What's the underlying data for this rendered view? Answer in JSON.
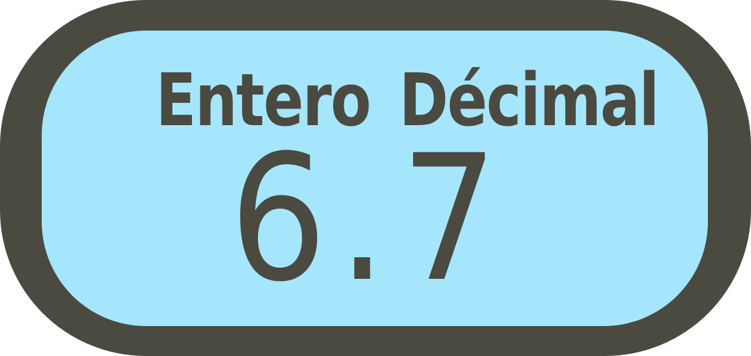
{
  "labels": {
    "integer": "Entero",
    "decimal": "Décimal"
  },
  "number": {
    "integer": "6",
    "point": ".",
    "decimal": "7"
  },
  "colors": {
    "frame": "#4a4a40",
    "panel": "#a6e6fd",
    "text": "#4a4a40"
  }
}
